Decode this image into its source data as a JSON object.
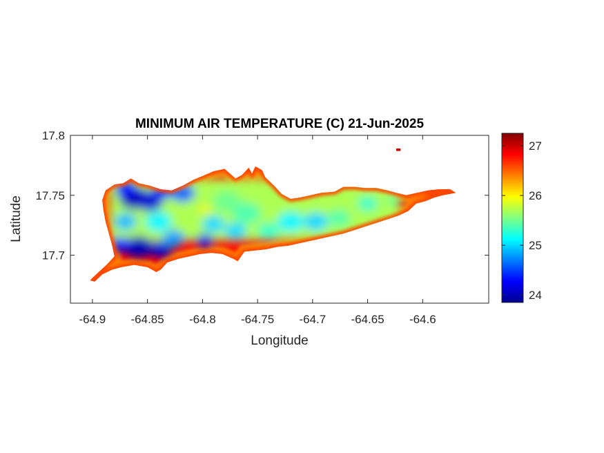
{
  "chart_data": {
    "type": "heatmap",
    "title": "MINIMUM AIR TEMPERATURE (C) 21-Jun-2025",
    "xlabel": "Longitude",
    "ylabel": "Latitude",
    "xlim": [
      -64.92,
      -64.54
    ],
    "ylim": [
      17.66,
      17.8
    ],
    "xticks": [
      -64.9,
      -64.85,
      -64.8,
      -64.75,
      -64.7,
      -64.65,
      -64.6
    ],
    "xtick_labels": [
      "-64.9",
      "-64.85",
      "-64.8",
      "-64.75",
      "-64.7",
      "-64.65",
      "-64.6"
    ],
    "yticks": [
      17.7,
      17.75,
      17.8
    ],
    "ytick_labels": [
      "17.7",
      "17.75",
      "17.8"
    ],
    "colorbar": {
      "range": [
        23.85,
        27.25
      ],
      "ticks": [
        24,
        25,
        26,
        27
      ],
      "tick_labels": [
        "24",
        "25",
        "26",
        "27"
      ],
      "colormap": "jet",
      "colors": [
        "#00008f",
        "#0000ff",
        "#0080ff",
        "#00ffff",
        "#80ff80",
        "#ffff00",
        "#ff8000",
        "#ff0000",
        "#800000"
      ]
    },
    "island_outline": [
      [
        -64.9,
        17.681
      ],
      [
        -64.893,
        17.687
      ],
      [
        -64.886,
        17.693
      ],
      [
        -64.88,
        17.699
      ],
      [
        -64.882,
        17.708
      ],
      [
        -64.885,
        17.718
      ],
      [
        -64.888,
        17.728
      ],
      [
        -64.89,
        17.738
      ],
      [
        -64.891,
        17.746
      ],
      [
        -64.888,
        17.754
      ],
      [
        -64.88,
        17.759
      ],
      [
        -64.872,
        17.76
      ],
      [
        -64.865,
        17.764
      ],
      [
        -64.858,
        17.76
      ],
      [
        -64.848,
        17.758
      ],
      [
        -64.838,
        17.755
      ],
      [
        -64.828,
        17.754
      ],
      [
        -64.818,
        17.758
      ],
      [
        -64.808,
        17.763
      ],
      [
        -64.8,
        17.766
      ],
      [
        -64.79,
        17.77
      ],
      [
        -64.78,
        17.772
      ],
      [
        -64.775,
        17.768
      ],
      [
        -64.77,
        17.764
      ],
      [
        -64.764,
        17.767
      ],
      [
        -64.758,
        17.773
      ],
      [
        -64.755,
        17.768
      ],
      [
        -64.752,
        17.774
      ],
      [
        -64.746,
        17.771
      ],
      [
        -64.743,
        17.765
      ],
      [
        -64.735,
        17.758
      ],
      [
        -64.728,
        17.751
      ],
      [
        -64.72,
        17.747
      ],
      [
        -64.712,
        17.748
      ],
      [
        -64.702,
        17.75
      ],
      [
        -64.692,
        17.752
      ],
      [
        -64.68,
        17.753
      ],
      [
        -64.672,
        17.757
      ],
      [
        -64.662,
        17.757
      ],
      [
        -64.652,
        17.756
      ],
      [
        -64.642,
        17.756
      ],
      [
        -64.632,
        17.754
      ],
      [
        -64.624,
        17.752
      ],
      [
        -64.615,
        17.75
      ],
      [
        -64.605,
        17.752
      ],
      [
        -64.595,
        17.754
      ],
      [
        -64.585,
        17.755
      ],
      [
        -64.575,
        17.755
      ],
      [
        -64.57,
        17.752
      ],
      [
        -64.582,
        17.75
      ],
      [
        -64.59,
        17.748
      ],
      [
        -64.598,
        17.745
      ],
      [
        -64.606,
        17.743
      ],
      [
        -64.613,
        17.737
      ],
      [
        -64.622,
        17.733
      ],
      [
        -64.632,
        17.73
      ],
      [
        -64.642,
        17.727
      ],
      [
        -64.652,
        17.724
      ],
      [
        -64.662,
        17.721
      ],
      [
        -64.672,
        17.718
      ],
      [
        -64.682,
        17.716
      ],
      [
        -64.692,
        17.714
      ],
      [
        -64.702,
        17.712
      ],
      [
        -64.712,
        17.71
      ],
      [
        -64.722,
        17.708
      ],
      [
        -64.732,
        17.707
      ],
      [
        -64.742,
        17.705
      ],
      [
        -64.752,
        17.704
      ],
      [
        -64.762,
        17.703
      ],
      [
        -64.768,
        17.695
      ],
      [
        -64.772,
        17.697
      ],
      [
        -64.782,
        17.701
      ],
      [
        -64.792,
        17.702
      ],
      [
        -64.802,
        17.701
      ],
      [
        -64.812,
        17.699
      ],
      [
        -64.822,
        17.697
      ],
      [
        -64.832,
        17.694
      ],
      [
        -64.838,
        17.688
      ],
      [
        -64.842,
        17.686
      ],
      [
        -64.85,
        17.69
      ],
      [
        -64.862,
        17.692
      ],
      [
        -64.874,
        17.69
      ],
      [
        -64.882,
        17.688
      ],
      [
        -64.891,
        17.684
      ],
      [
        -64.898,
        17.678
      ],
      [
        -64.902,
        17.679
      ]
    ],
    "islet_outline": [
      [
        -64.624,
        17.789
      ],
      [
        -64.62,
        17.789
      ],
      [
        -64.62,
        17.787
      ],
      [
        -64.624,
        17.787
      ]
    ],
    "rim_temperature": 26.4,
    "temperature_spots": [
      {
        "lon": -64.862,
        "lat": 17.748,
        "t": 24.0,
        "r": 0.014
      },
      {
        "lon": -64.848,
        "lat": 17.745,
        "t": 24.1,
        "r": 0.012
      },
      {
        "lon": -64.87,
        "lat": 17.756,
        "t": 24.3,
        "r": 0.01
      },
      {
        "lon": -64.836,
        "lat": 17.754,
        "t": 24.4,
        "r": 0.01
      },
      {
        "lon": -64.818,
        "lat": 17.752,
        "t": 24.6,
        "r": 0.011
      },
      {
        "lon": -64.858,
        "lat": 17.707,
        "t": 24.0,
        "r": 0.013
      },
      {
        "lon": -64.838,
        "lat": 17.705,
        "t": 24.1,
        "r": 0.01
      },
      {
        "lon": -64.875,
        "lat": 17.709,
        "t": 24.3,
        "r": 0.009
      },
      {
        "lon": -64.798,
        "lat": 17.712,
        "t": 24.2,
        "r": 0.008
      },
      {
        "lon": -64.826,
        "lat": 17.714,
        "t": 24.8,
        "r": 0.01
      },
      {
        "lon": -64.84,
        "lat": 17.728,
        "t": 25.1,
        "r": 0.012
      },
      {
        "lon": -64.87,
        "lat": 17.728,
        "t": 24.9,
        "r": 0.01
      },
      {
        "lon": -64.79,
        "lat": 17.726,
        "t": 25.0,
        "r": 0.01
      },
      {
        "lon": -64.778,
        "lat": 17.745,
        "t": 25.5,
        "r": 0.013
      },
      {
        "lon": -64.76,
        "lat": 17.735,
        "t": 25.4,
        "r": 0.013
      },
      {
        "lon": -64.77,
        "lat": 17.72,
        "t": 25.0,
        "r": 0.01
      },
      {
        "lon": -64.74,
        "lat": 17.72,
        "t": 25.3,
        "r": 0.01
      },
      {
        "lon": -64.72,
        "lat": 17.728,
        "t": 25.1,
        "r": 0.012
      },
      {
        "lon": -64.697,
        "lat": 17.728,
        "t": 25.0,
        "r": 0.011
      },
      {
        "lon": -64.676,
        "lat": 17.731,
        "t": 25.4,
        "r": 0.01
      },
      {
        "lon": -64.65,
        "lat": 17.743,
        "t": 25.3,
        "r": 0.009
      },
      {
        "lon": -64.626,
        "lat": 17.746,
        "t": 25.5,
        "r": 0.007
      },
      {
        "lon": -64.798,
        "lat": 17.738,
        "t": 26.0,
        "r": 0.005
      },
      {
        "lon": -64.89,
        "lat": 17.69,
        "t": 26.0,
        "r": 0.005
      },
      {
        "lon": -64.59,
        "lat": 17.751,
        "t": 26.9,
        "r": 0.006
      },
      {
        "lon": -64.9,
        "lat": 17.681,
        "t": 27.0,
        "r": 0.003
      },
      {
        "lon": -64.622,
        "lat": 17.788,
        "t": 27.0,
        "r": 0.003
      }
    ]
  }
}
